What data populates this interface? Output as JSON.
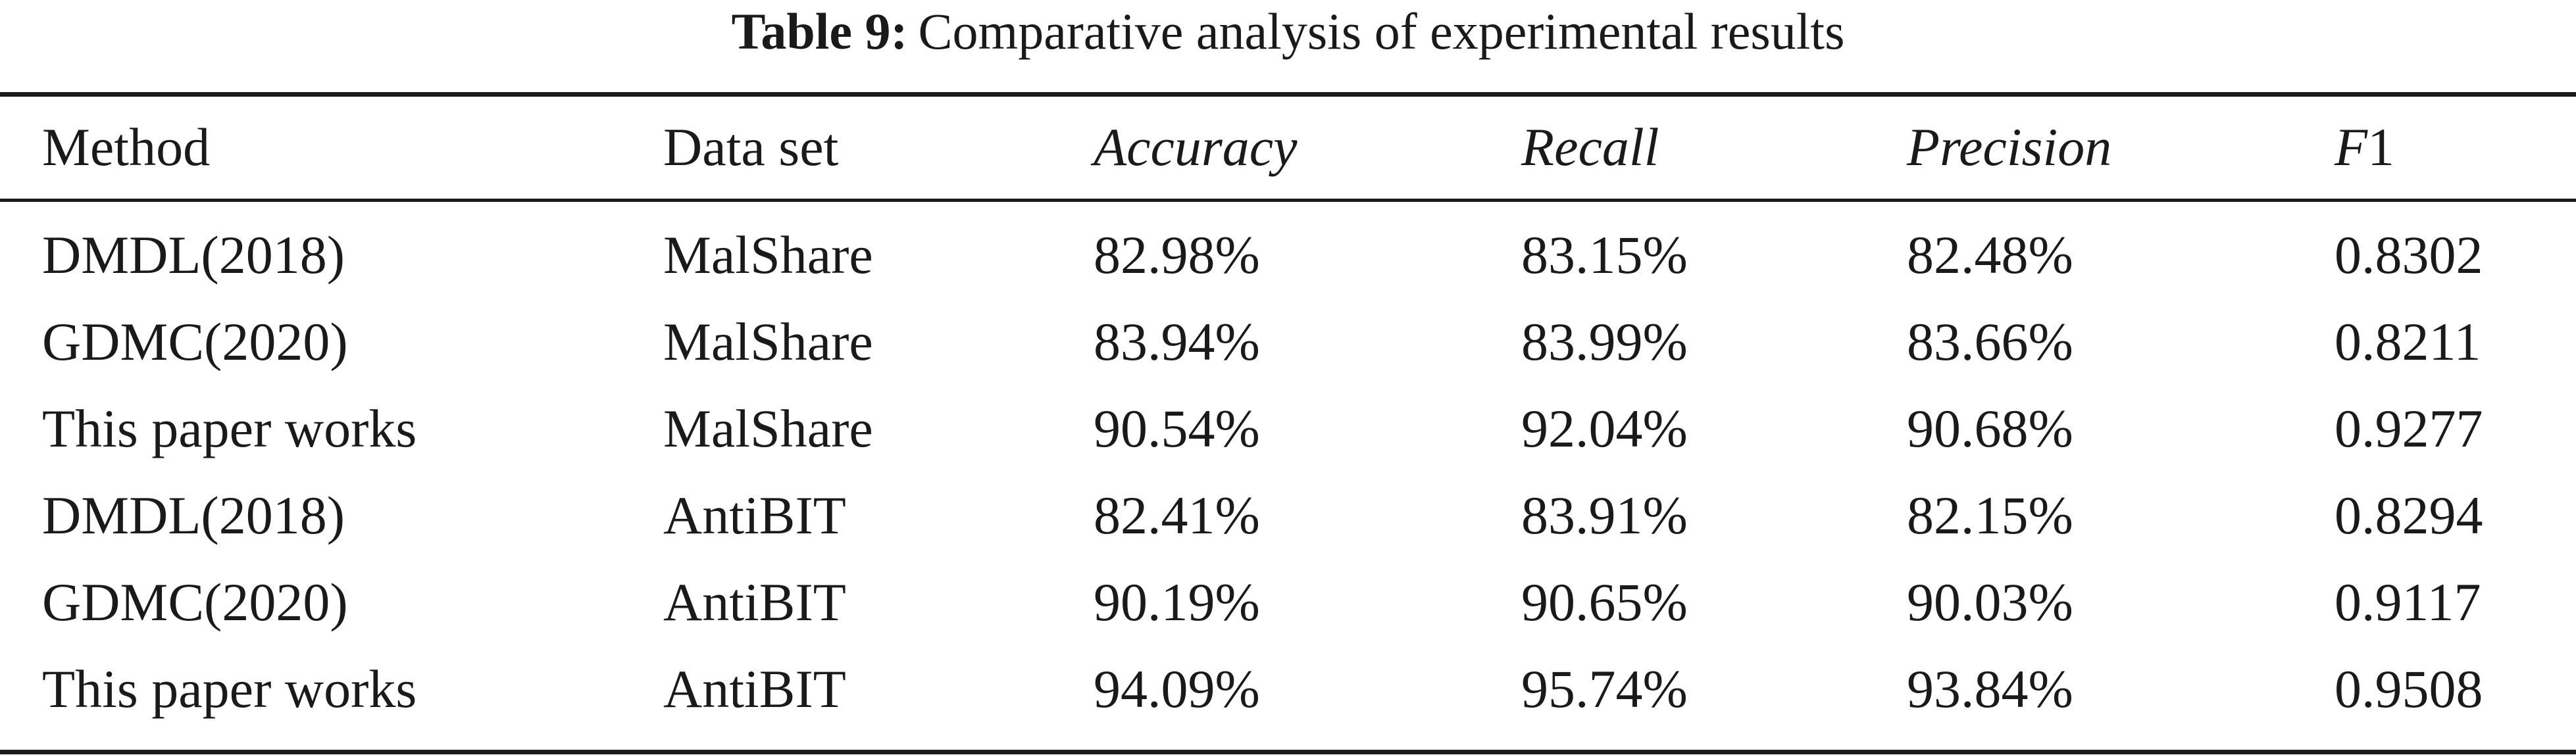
{
  "caption": {
    "label": "Table 9:",
    "text": "Comparative analysis of experimental results"
  },
  "table": {
    "columns": [
      {
        "label": "Method",
        "italic": false
      },
      {
        "label": "Data set",
        "italic": false
      },
      {
        "label": "Accuracy",
        "italic": true
      },
      {
        "label": "Recall",
        "italic": true
      },
      {
        "label": "Precision",
        "italic": true
      },
      {
        "label_italic": "F",
        "label_rest": "1"
      }
    ],
    "rows": [
      [
        "DMDL(2018)",
        "MalShare",
        "82.98%",
        "83.15%",
        "82.48%",
        "0.8302"
      ],
      [
        "GDMC(2020)",
        "MalShare",
        "83.94%",
        "83.99%",
        "83.66%",
        "0.8211"
      ],
      [
        "This paper works",
        "MalShare",
        "90.54%",
        "92.04%",
        "90.68%",
        "0.9277"
      ],
      [
        "DMDL(2018)",
        "AntiBIT",
        "82.41%",
        "83.91%",
        "82.15%",
        "0.8294"
      ],
      [
        "GDMC(2020)",
        "AntiBIT",
        "90.19%",
        "90.65%",
        "90.03%",
        "0.9117"
      ],
      [
        "This paper works",
        "AntiBIT",
        "94.09%",
        "95.74%",
        "93.84%",
        "0.9508"
      ]
    ]
  }
}
